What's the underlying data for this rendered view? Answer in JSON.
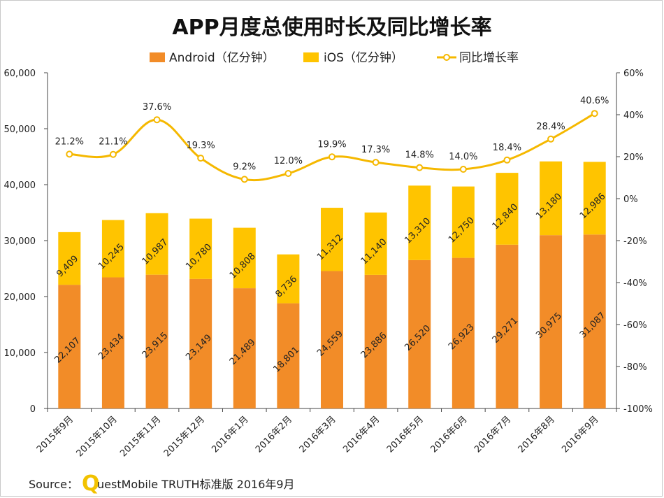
{
  "chart_data": {
    "type": "bar",
    "title": "APP月度总使用时长及同比增长率",
    "categories": [
      "2015年9月",
      "2015年10月",
      "2015年11月",
      "2015年12月",
      "2016年1月",
      "2016年2月",
      "2016年3月",
      "2016年4月",
      "2016年5月",
      "2016年6月",
      "2016年7月",
      "2016年8月",
      "2016年9月"
    ],
    "series": [
      {
        "name": "Android（亿分钟）",
        "type": "bar",
        "stack": "total",
        "color": "#f28c28",
        "values": [
          22107,
          23434,
          23915,
          23149,
          21489,
          18801,
          24559,
          23886,
          26520,
          26923,
          29271,
          30975,
          31087
        ],
        "labels": [
          "22,107",
          "23,434",
          "23,915",
          "23,149",
          "21,489",
          "18,801",
          "24,559",
          "23,886",
          "26,520",
          "26,923",
          "29,271",
          "30,975",
          "31,087"
        ]
      },
      {
        "name": "iOS（亿分钟）",
        "type": "bar",
        "stack": "total",
        "color": "#ffc400",
        "values": [
          9409,
          10245,
          10987,
          10780,
          10808,
          8736,
          11312,
          11140,
          13310,
          12750,
          12840,
          13180,
          12986
        ],
        "labels": [
          "9,409",
          "10,245",
          "10,987",
          "10,780",
          "10,808",
          "8,736",
          "11,312",
          "11,140",
          "13,310",
          "12,750",
          "12,840",
          "13,180",
          "12,986"
        ]
      },
      {
        "name": "同比增长率",
        "type": "line",
        "axis": "right",
        "color": "#f5b800",
        "values": [
          21.2,
          21.1,
          37.6,
          19.3,
          9.2,
          12.0,
          19.9,
          17.3,
          14.8,
          14.0,
          18.4,
          28.4,
          40.6
        ],
        "labels": [
          "21.2%",
          "21.1%",
          "37.6%",
          "19.3%",
          "9.2%",
          "12.0%",
          "19.9%",
          "17.3%",
          "14.8%",
          "14.0%",
          "18.4%",
          "28.4%",
          "40.6%"
        ]
      }
    ],
    "ylim": [
      0,
      60000
    ],
    "yticks": [
      "0",
      "10,000",
      "20,000",
      "30,000",
      "40,000",
      "50,000",
      "60,000"
    ],
    "y2lim": [
      -100,
      60
    ],
    "y2ticks": [
      "-100%",
      "-80%",
      "-60%",
      "-40%",
      "-20%",
      "0%",
      "20%",
      "40%",
      "60%"
    ],
    "legend_position": "top",
    "grid": false
  },
  "source": {
    "label": "Source：",
    "logo_letter": "Q",
    "text": "uestMobile TRUTH标准版 2016年9月"
  }
}
